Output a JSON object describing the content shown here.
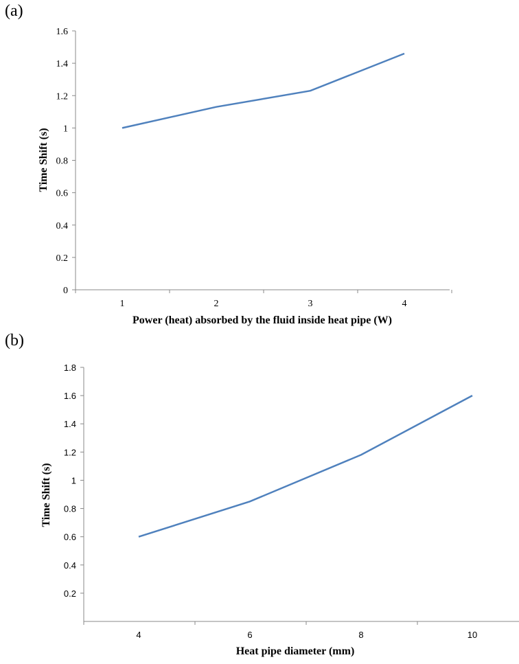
{
  "panels": {
    "a": {
      "label": "(a)"
    },
    "b": {
      "label": "(b)"
    }
  },
  "chart_data": [
    {
      "type": "line",
      "x": [
        1,
        2,
        3,
        4
      ],
      "series": [
        {
          "values": [
            1.0,
            1.13,
            1.23,
            1.46
          ],
          "color": "#4f81bd"
        }
      ],
      "xlabel": "Power (heat) absorbed by the fluid inside heat pipe (W)",
      "ylabel": "Time Shift (s)",
      "xticks": [
        "1",
        "2",
        "3",
        "4"
      ],
      "yticks": [
        "0",
        "0.2",
        "0.4",
        "0.6",
        "0.8",
        "1",
        "1.2",
        "1.4",
        "1.6"
      ],
      "ylim": [
        0,
        1.6
      ],
      "grid": false
    },
    {
      "type": "line",
      "x": [
        4,
        6,
        8,
        10
      ],
      "series": [
        {
          "values": [
            0.6,
            0.85,
            1.18,
            1.6
          ],
          "color": "#4f81bd"
        }
      ],
      "xlabel": "Heat pipe diameter (mm)",
      "ylabel": "Time Shift (s)",
      "xticks": [
        "4",
        "6",
        "8",
        "10"
      ],
      "yticks": [
        "0.2",
        "0.4",
        "0.6",
        "0.8",
        "1",
        "1.2",
        "1.4",
        "1.6",
        "1.8"
      ],
      "ylim": [
        0,
        1.8
      ],
      "grid": false
    }
  ]
}
